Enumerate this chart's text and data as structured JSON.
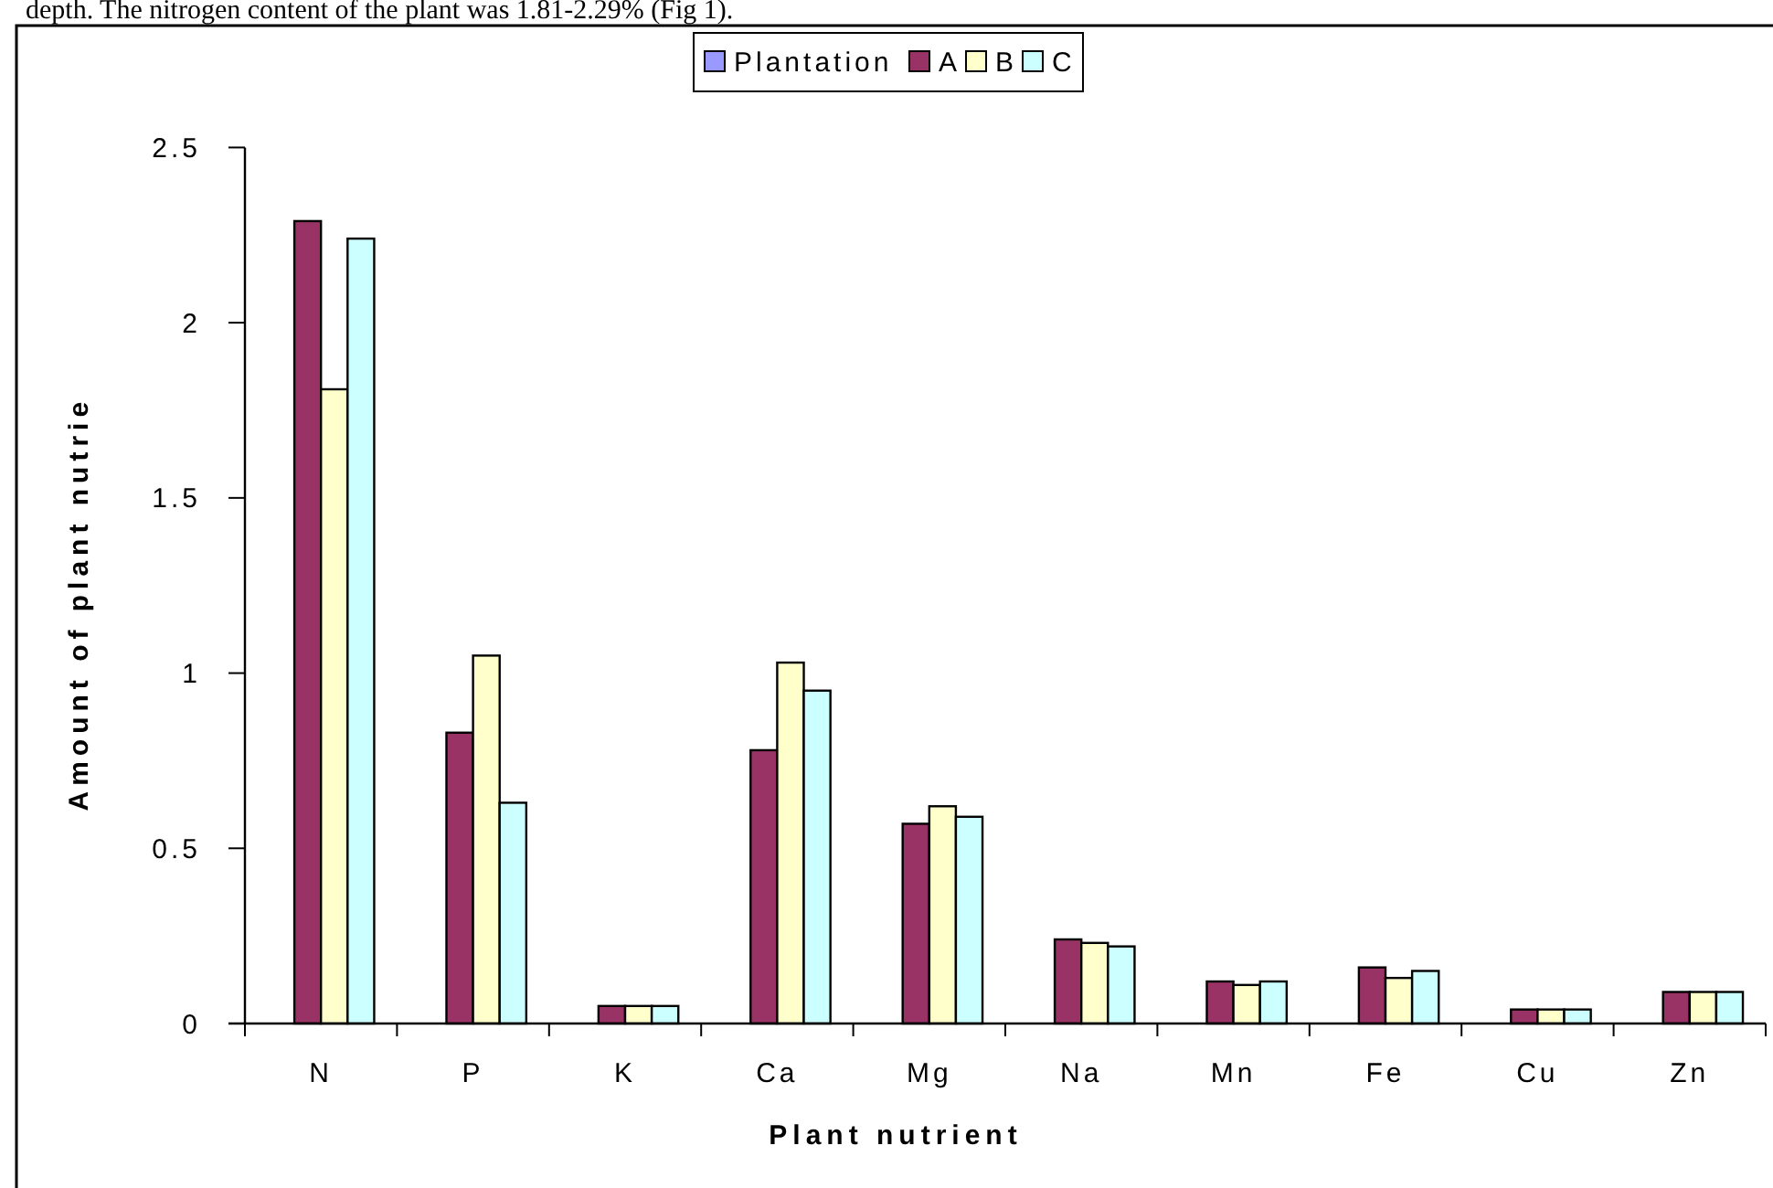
{
  "chart_data": {
    "type": "bar",
    "xlabel": "Plant nutrient",
    "ylabel": "Amount of plant nutrie",
    "annotations": [
      "depth. The nitrogen content of the plant was 1.81-2.29% (Fig 1)."
    ],
    "categories": [
      "N",
      "P",
      "K",
      "Ca",
      "Mg",
      "Na",
      "Mn",
      "Fe",
      "Cu",
      "Zn"
    ],
    "series": [
      {
        "name": "Plantation",
        "color": "#9999ff",
        "values": [
          null,
          null,
          null,
          null,
          null,
          null,
          null,
          null,
          null,
          null
        ]
      },
      {
        "name": "A",
        "color": "#993366",
        "values": [
          2.29,
          0.83,
          0.05,
          0.78,
          0.57,
          0.24,
          0.12,
          0.16,
          0.04,
          0.09
        ]
      },
      {
        "name": "B",
        "color": "#ffffcc",
        "values": [
          1.81,
          1.05,
          0.05,
          1.03,
          0.62,
          0.23,
          0.11,
          0.13,
          0.04,
          0.09
        ]
      },
      {
        "name": "C",
        "color": "#ccffff",
        "values": [
          2.24,
          0.63,
          0.05,
          0.95,
          0.59,
          0.22,
          0.12,
          0.15,
          0.04,
          0.09
        ]
      }
    ],
    "ylim": [
      0,
      2.5
    ],
    "yticks": [
      0,
      0.5,
      1,
      1.5,
      2,
      2.5
    ],
    "grid": false,
    "legend": "top"
  }
}
